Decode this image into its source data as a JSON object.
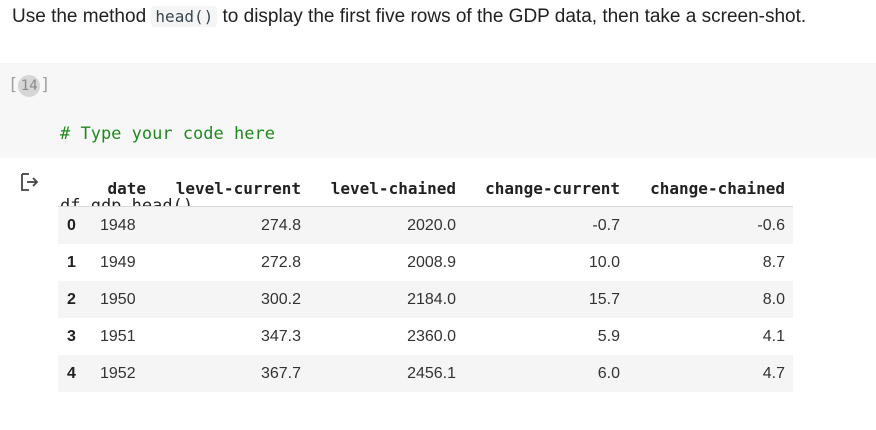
{
  "instruction": {
    "before": "Use the method ",
    "code": "head()",
    "after": " to display the first five rows of the GDP data, then take a screen-shot."
  },
  "cell": {
    "execution_count_prefix": "[",
    "execution_count": "14",
    "execution_count_suffix": "]",
    "code_comment": "# Type your code here",
    "code_line": "df_gdp.head()"
  },
  "output": {
    "icon": "output-arrow-icon",
    "table": {
      "columns": [
        "",
        "date",
        "level-current",
        "level-chained",
        "change-current",
        "change-chained"
      ],
      "rows": [
        [
          "0",
          "1948",
          "274.8",
          "2020.0",
          "-0.7",
          "-0.6"
        ],
        [
          "1",
          "1949",
          "272.8",
          "2008.9",
          "10.0",
          "8.7"
        ],
        [
          "2",
          "1950",
          "300.2",
          "2184.0",
          "15.7",
          "8.0"
        ],
        [
          "3",
          "1951",
          "347.3",
          "2360.0",
          "5.9",
          "4.1"
        ],
        [
          "4",
          "1952",
          "367.7",
          "2456.1",
          "6.0",
          "4.7"
        ]
      ]
    }
  }
}
